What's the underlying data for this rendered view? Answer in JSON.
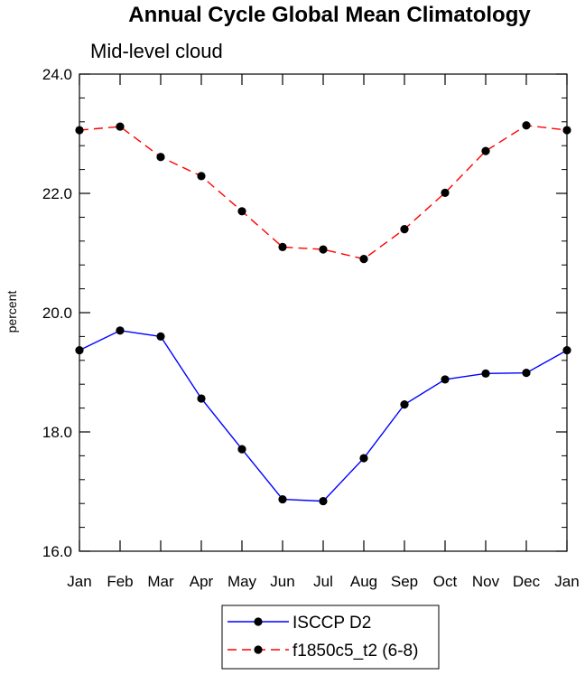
{
  "chart_data": {
    "type": "line",
    "title": "Annual Cycle Global Mean Climatology",
    "subtitle": "Mid-level cloud",
    "xlabel": "",
    "ylabel": "percent",
    "ylim": [
      16.0,
      24.0
    ],
    "y_ticks": [
      "16.0",
      "18.0",
      "20.0",
      "22.0",
      "24.0"
    ],
    "categories": [
      "Jan",
      "Feb",
      "Mar",
      "Apr",
      "May",
      "Jun",
      "Jul",
      "Aug",
      "Sep",
      "Oct",
      "Nov",
      "Dec",
      "Jan"
    ],
    "series": [
      {
        "name": "ISCCP D2",
        "color": "#0000ff",
        "style": "solid",
        "values": [
          19.37,
          19.7,
          19.6,
          18.56,
          17.71,
          16.87,
          16.84,
          17.56,
          18.46,
          18.88,
          18.98,
          18.99,
          19.37
        ]
      },
      {
        "name": "f1850c5_t2 (6-8)",
        "color": "#ff0000",
        "style": "dashed",
        "values": [
          23.06,
          23.12,
          22.61,
          22.29,
          21.7,
          21.1,
          21.06,
          20.9,
          21.4,
          22.01,
          22.71,
          23.14,
          23.06
        ]
      }
    ],
    "legend_position": "bottom-center"
  }
}
